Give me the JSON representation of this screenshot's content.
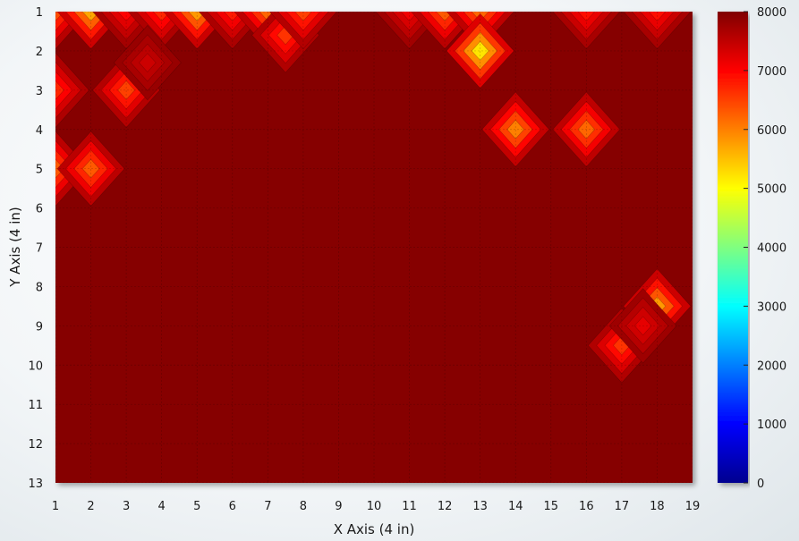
{
  "chart_data": {
    "type": "heatmap",
    "title": "",
    "xlabel": "X Axis (4 in)",
    "ylabel": "Y Axis (4 in)",
    "x_categories": [
      "1",
      "2",
      "3",
      "4",
      "5",
      "6",
      "7",
      "8",
      "9",
      "10",
      "11",
      "12",
      "13",
      "14",
      "15",
      "16",
      "17",
      "18",
      "19"
    ],
    "y_categories": [
      "1",
      "2",
      "3",
      "4",
      "5",
      "6",
      "7",
      "8",
      "9",
      "10",
      "11",
      "12",
      "13"
    ],
    "xlim": [
      1,
      19
    ],
    "ylim": [
      1,
      13
    ],
    "y_inverted": true,
    "colorbar": {
      "min": 0,
      "max": 8000,
      "ticks": [
        "0",
        "1000",
        "2000",
        "3000",
        "4000",
        "5000",
        "6000",
        "7000",
        "8000"
      ],
      "colormap": "jet"
    },
    "baseline_value": 7950,
    "features": [
      {
        "x": 1,
        "y": 1,
        "value": 6400
      },
      {
        "x": 2,
        "y": 1,
        "value": 5700
      },
      {
        "x": 3,
        "y": 1,
        "value": 7000
      },
      {
        "x": 4,
        "y": 1,
        "value": 6700
      },
      {
        "x": 5,
        "y": 1,
        "value": 5800
      },
      {
        "x": 6,
        "y": 1,
        "value": 6800
      },
      {
        "x": 7,
        "y": 1,
        "value": 6200
      },
      {
        "x": 7.5,
        "y": 1.6,
        "value": 6600
      },
      {
        "x": 8,
        "y": 1,
        "value": 6500
      },
      {
        "x": 11,
        "y": 1,
        "value": 7100
      },
      {
        "x": 12,
        "y": 1,
        "value": 6300
      },
      {
        "x": 13,
        "y": 1,
        "value": 6200
      },
      {
        "x": 13,
        "y": 2,
        "value": 5200
      },
      {
        "x": 16,
        "y": 1,
        "value": 6900
      },
      {
        "x": 18,
        "y": 1,
        "value": 6900
      },
      {
        "x": 3,
        "y": 3,
        "value": 6500
      },
      {
        "x": 3.6,
        "y": 2.3,
        "value": 7400
      },
      {
        "x": 1,
        "y": 3,
        "value": 6700
      },
      {
        "x": 14,
        "y": 4,
        "value": 6000
      },
      {
        "x": 16,
        "y": 4,
        "value": 6200
      },
      {
        "x": 1,
        "y": 5,
        "value": 6300
      },
      {
        "x": 2,
        "y": 5,
        "value": 6300
      },
      {
        "x": 18,
        "y": 8.5,
        "value": 5800
      },
      {
        "x": 17,
        "y": 9.5,
        "value": 6600
      },
      {
        "x": 17.6,
        "y": 9,
        "value": 7200
      }
    ]
  }
}
